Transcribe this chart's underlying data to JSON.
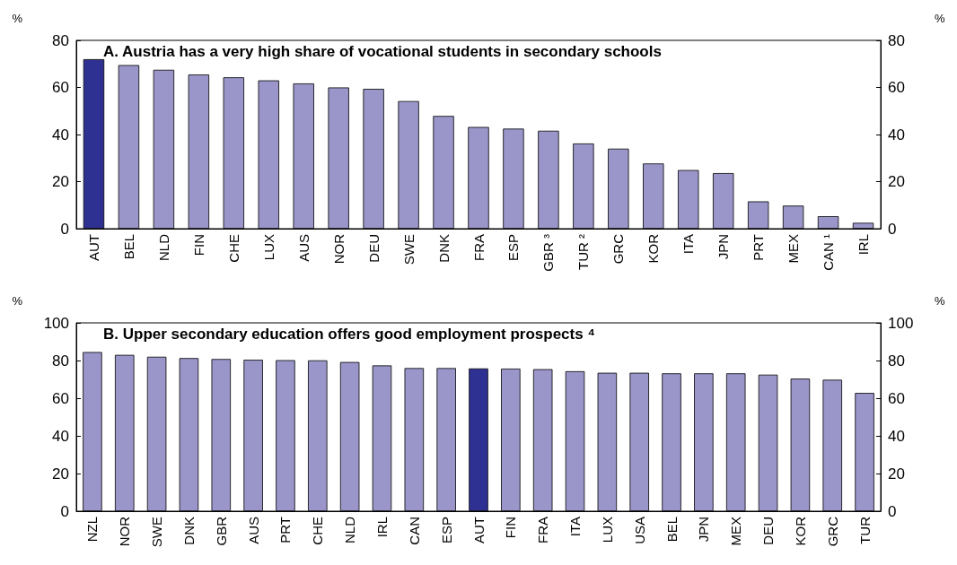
{
  "chart_data": [
    {
      "type": "bar",
      "title": "A. Austria has a very high share of vocational students in secondary schools",
      "ylabel": "%",
      "y2label": "%",
      "categories": [
        "AUT",
        "BEL",
        "NLD",
        "FIN",
        "CHE",
        "LUX",
        "AUS",
        "NOR",
        "DEU",
        "SWE",
        "DNK",
        "FRA",
        "ESP",
        "GBR ³",
        "TUR ²",
        "GRC",
        "KOR",
        "ITA",
        "JPN",
        "PRT",
        "MEX",
        "CAN ¹",
        "IRL"
      ],
      "values": [
        72,
        69.5,
        67.5,
        65.5,
        64.3,
        63,
        61.7,
        60,
        59.4,
        54.2,
        47.9,
        43.2,
        42.5,
        41.6,
        36.2,
        34,
        27.7,
        24.9,
        23.6,
        11.6,
        9.8,
        5.3,
        2.5
      ],
      "colors": [
        "#2e3192",
        "#9a96c9",
        "#9a96c9",
        "#9a96c9",
        "#9a96c9",
        "#9a96c9",
        "#9a96c9",
        "#9a96c9",
        "#9a96c9",
        "#9a96c9",
        "#9a96c9",
        "#9a96c9",
        "#9a96c9",
        "#9a96c9",
        "#9a96c9",
        "#9a96c9",
        "#9a96c9",
        "#9a96c9",
        "#9a96c9",
        "#9a96c9",
        "#9a96c9",
        "#9a96c9",
        "#9a96c9"
      ],
      "ylim": [
        0,
        80
      ],
      "yticks": [
        0,
        20,
        40,
        60,
        80
      ],
      "y2lim": [
        0,
        80
      ],
      "y2ticks": [
        0,
        20,
        40,
        60,
        80
      ],
      "grid": false
    },
    {
      "type": "bar",
      "title": "B. Upper secondary education offers good employment prospects ⁴",
      "ylabel": "%",
      "y2label": "%",
      "categories": [
        "NZL",
        "NOR",
        "SWE",
        "DNK",
        "GBR",
        "AUS",
        "PRT",
        "CHE",
        "NLD",
        "IRL",
        "CAN",
        "ESP",
        "AUT",
        "FIN",
        "FRA",
        "ITA",
        "LUX",
        "USA",
        "BEL",
        "JPN",
        "MEX",
        "DEU",
        "KOR",
        "GRC",
        "TUR"
      ],
      "values": [
        84.5,
        83,
        82,
        81.3,
        80.8,
        80.4,
        80.2,
        80.1,
        79.2,
        77.4,
        76,
        76,
        75.8,
        75.7,
        75.4,
        74.3,
        73.5,
        73.5,
        73.2,
        73.2,
        73.2,
        72.5,
        70.4,
        69.8,
        62.8
      ],
      "colors": [
        "#9a96c9",
        "#9a96c9",
        "#9a96c9",
        "#9a96c9",
        "#9a96c9",
        "#9a96c9",
        "#9a96c9",
        "#9a96c9",
        "#9a96c9",
        "#9a96c9",
        "#9a96c9",
        "#9a96c9",
        "#2e3192",
        "#9a96c9",
        "#9a96c9",
        "#9a96c9",
        "#9a96c9",
        "#9a96c9",
        "#9a96c9",
        "#9a96c9",
        "#9a96c9",
        "#9a96c9",
        "#9a96c9",
        "#9a96c9",
        "#9a96c9"
      ],
      "ylim": [
        0,
        100
      ],
      "yticks": [
        0,
        20,
        40,
        60,
        80,
        100
      ],
      "y2lim": [
        0,
        100
      ],
      "y2ticks": [
        0,
        20,
        40,
        60,
        80,
        100
      ],
      "grid": false
    }
  ]
}
